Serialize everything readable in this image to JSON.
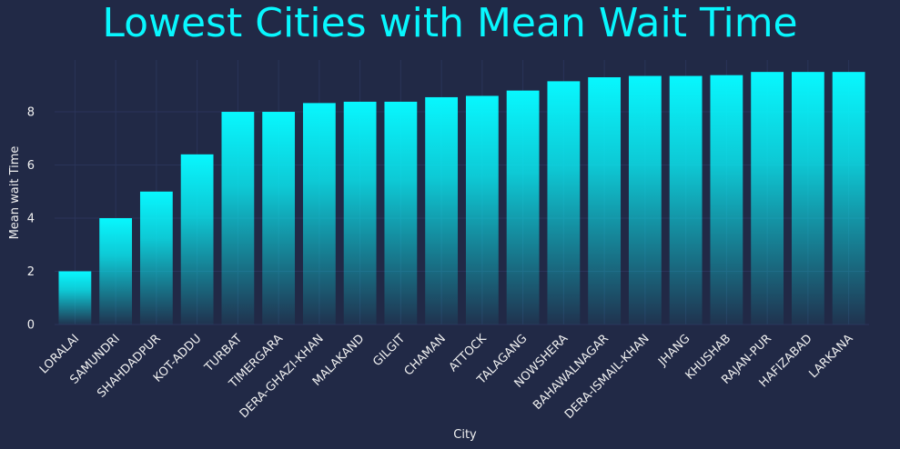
{
  "chart_data": {
    "type": "bar",
    "title": "Lowest Cities with Mean Wait Time",
    "xlabel": "City",
    "ylabel": "Mean wait Time",
    "categories": [
      "LORALAI",
      "SAMUNDRI",
      "SHAHDADPUR",
      "KOT-ADDU",
      "TURBAT",
      "TIMERGARA",
      "DERA-GHAZI-KHAN",
      "MALAKAND",
      "GILGIT",
      "CHAMAN",
      "ATTOCK",
      "TALAGANG",
      "NOWSHERA",
      "BAHAWALNAGAR",
      "DERA-ISMAIL-KHAN",
      "JHANG",
      "KHUSHAB",
      "RAJAN-PUR",
      "HAFIZABAD",
      "LARKANA"
    ],
    "values": [
      2.0,
      4.0,
      5.0,
      6.4,
      8.0,
      8.0,
      8.33,
      8.38,
      8.38,
      8.55,
      8.6,
      8.8,
      9.15,
      9.3,
      9.35,
      9.35,
      9.38,
      9.5,
      9.5,
      9.5
    ],
    "ylim": [
      0,
      9.95
    ],
    "yticks": [
      0,
      2,
      4,
      6,
      8
    ],
    "grid": true,
    "colors": {
      "background": "#212946",
      "bar_top": "#08F7FE",
      "bar_bottom": "#212946",
      "grid": "#2A3459",
      "title": "#08F7FE",
      "text": "#f0f0f0"
    }
  }
}
